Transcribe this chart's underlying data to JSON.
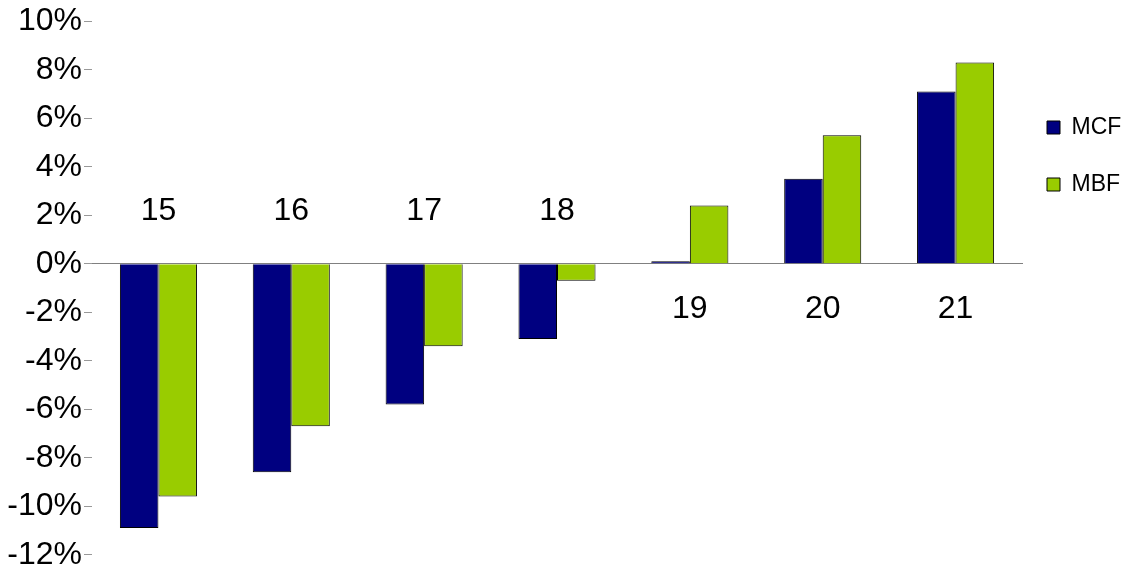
{
  "chart_data": {
    "type": "bar",
    "categories": [
      "15",
      "16",
      "17",
      "18",
      "19",
      "20",
      "21"
    ],
    "series": [
      {
        "name": "MCF",
        "color": "#000080",
        "values": [
          -10.9,
          -8.6,
          -5.8,
          -3.1,
          0.1,
          3.5,
          7.1
        ]
      },
      {
        "name": "MBF",
        "color": "#99cc00",
        "values": [
          -9.6,
          -6.7,
          -3.4,
          -0.7,
          2.4,
          5.3,
          8.3
        ]
      }
    ],
    "ylim": [
      -12,
      10
    ],
    "yticks": [
      {
        "value": -12,
        "label": "-12%"
      },
      {
        "value": -10,
        "label": "-10%"
      },
      {
        "value": -8,
        "label": "-8%"
      },
      {
        "value": -6,
        "label": "-6%"
      },
      {
        "value": -4,
        "label": "-4%"
      },
      {
        "value": -2,
        "label": "-2%"
      },
      {
        "value": 0,
        "label": "0%"
      },
      {
        "value": 2,
        "label": "2%"
      },
      {
        "value": 4,
        "label": "4%"
      },
      {
        "value": 6,
        "label": "6%"
      },
      {
        "value": 8,
        "label": "8%"
      },
      {
        "value": 10,
        "label": "10%"
      }
    ],
    "legend": "right"
  }
}
